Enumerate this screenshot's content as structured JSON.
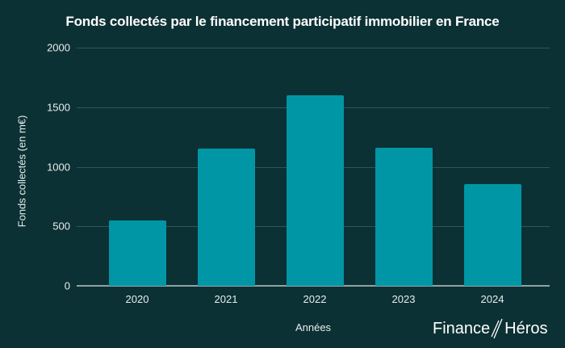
{
  "chart_data": {
    "type": "bar",
    "title": "Fonds collectés par le financement participatif immobilier en France",
    "xlabel": "Années",
    "ylabel": "Fonds collectés (en m€)",
    "categories": [
      "2020",
      "2021",
      "2022",
      "2023",
      "2024"
    ],
    "values": [
      550,
      1150,
      1600,
      1160,
      855
    ],
    "ylim": [
      0,
      2000
    ],
    "yticks": [
      "0",
      "500",
      "1000",
      "1500",
      "2000"
    ],
    "grid": true,
    "legend": null,
    "bar_color": "#0096a5",
    "background_color": "#0c3134"
  },
  "branding": {
    "logo_left": "Finance",
    "logo_right": "Héros"
  }
}
